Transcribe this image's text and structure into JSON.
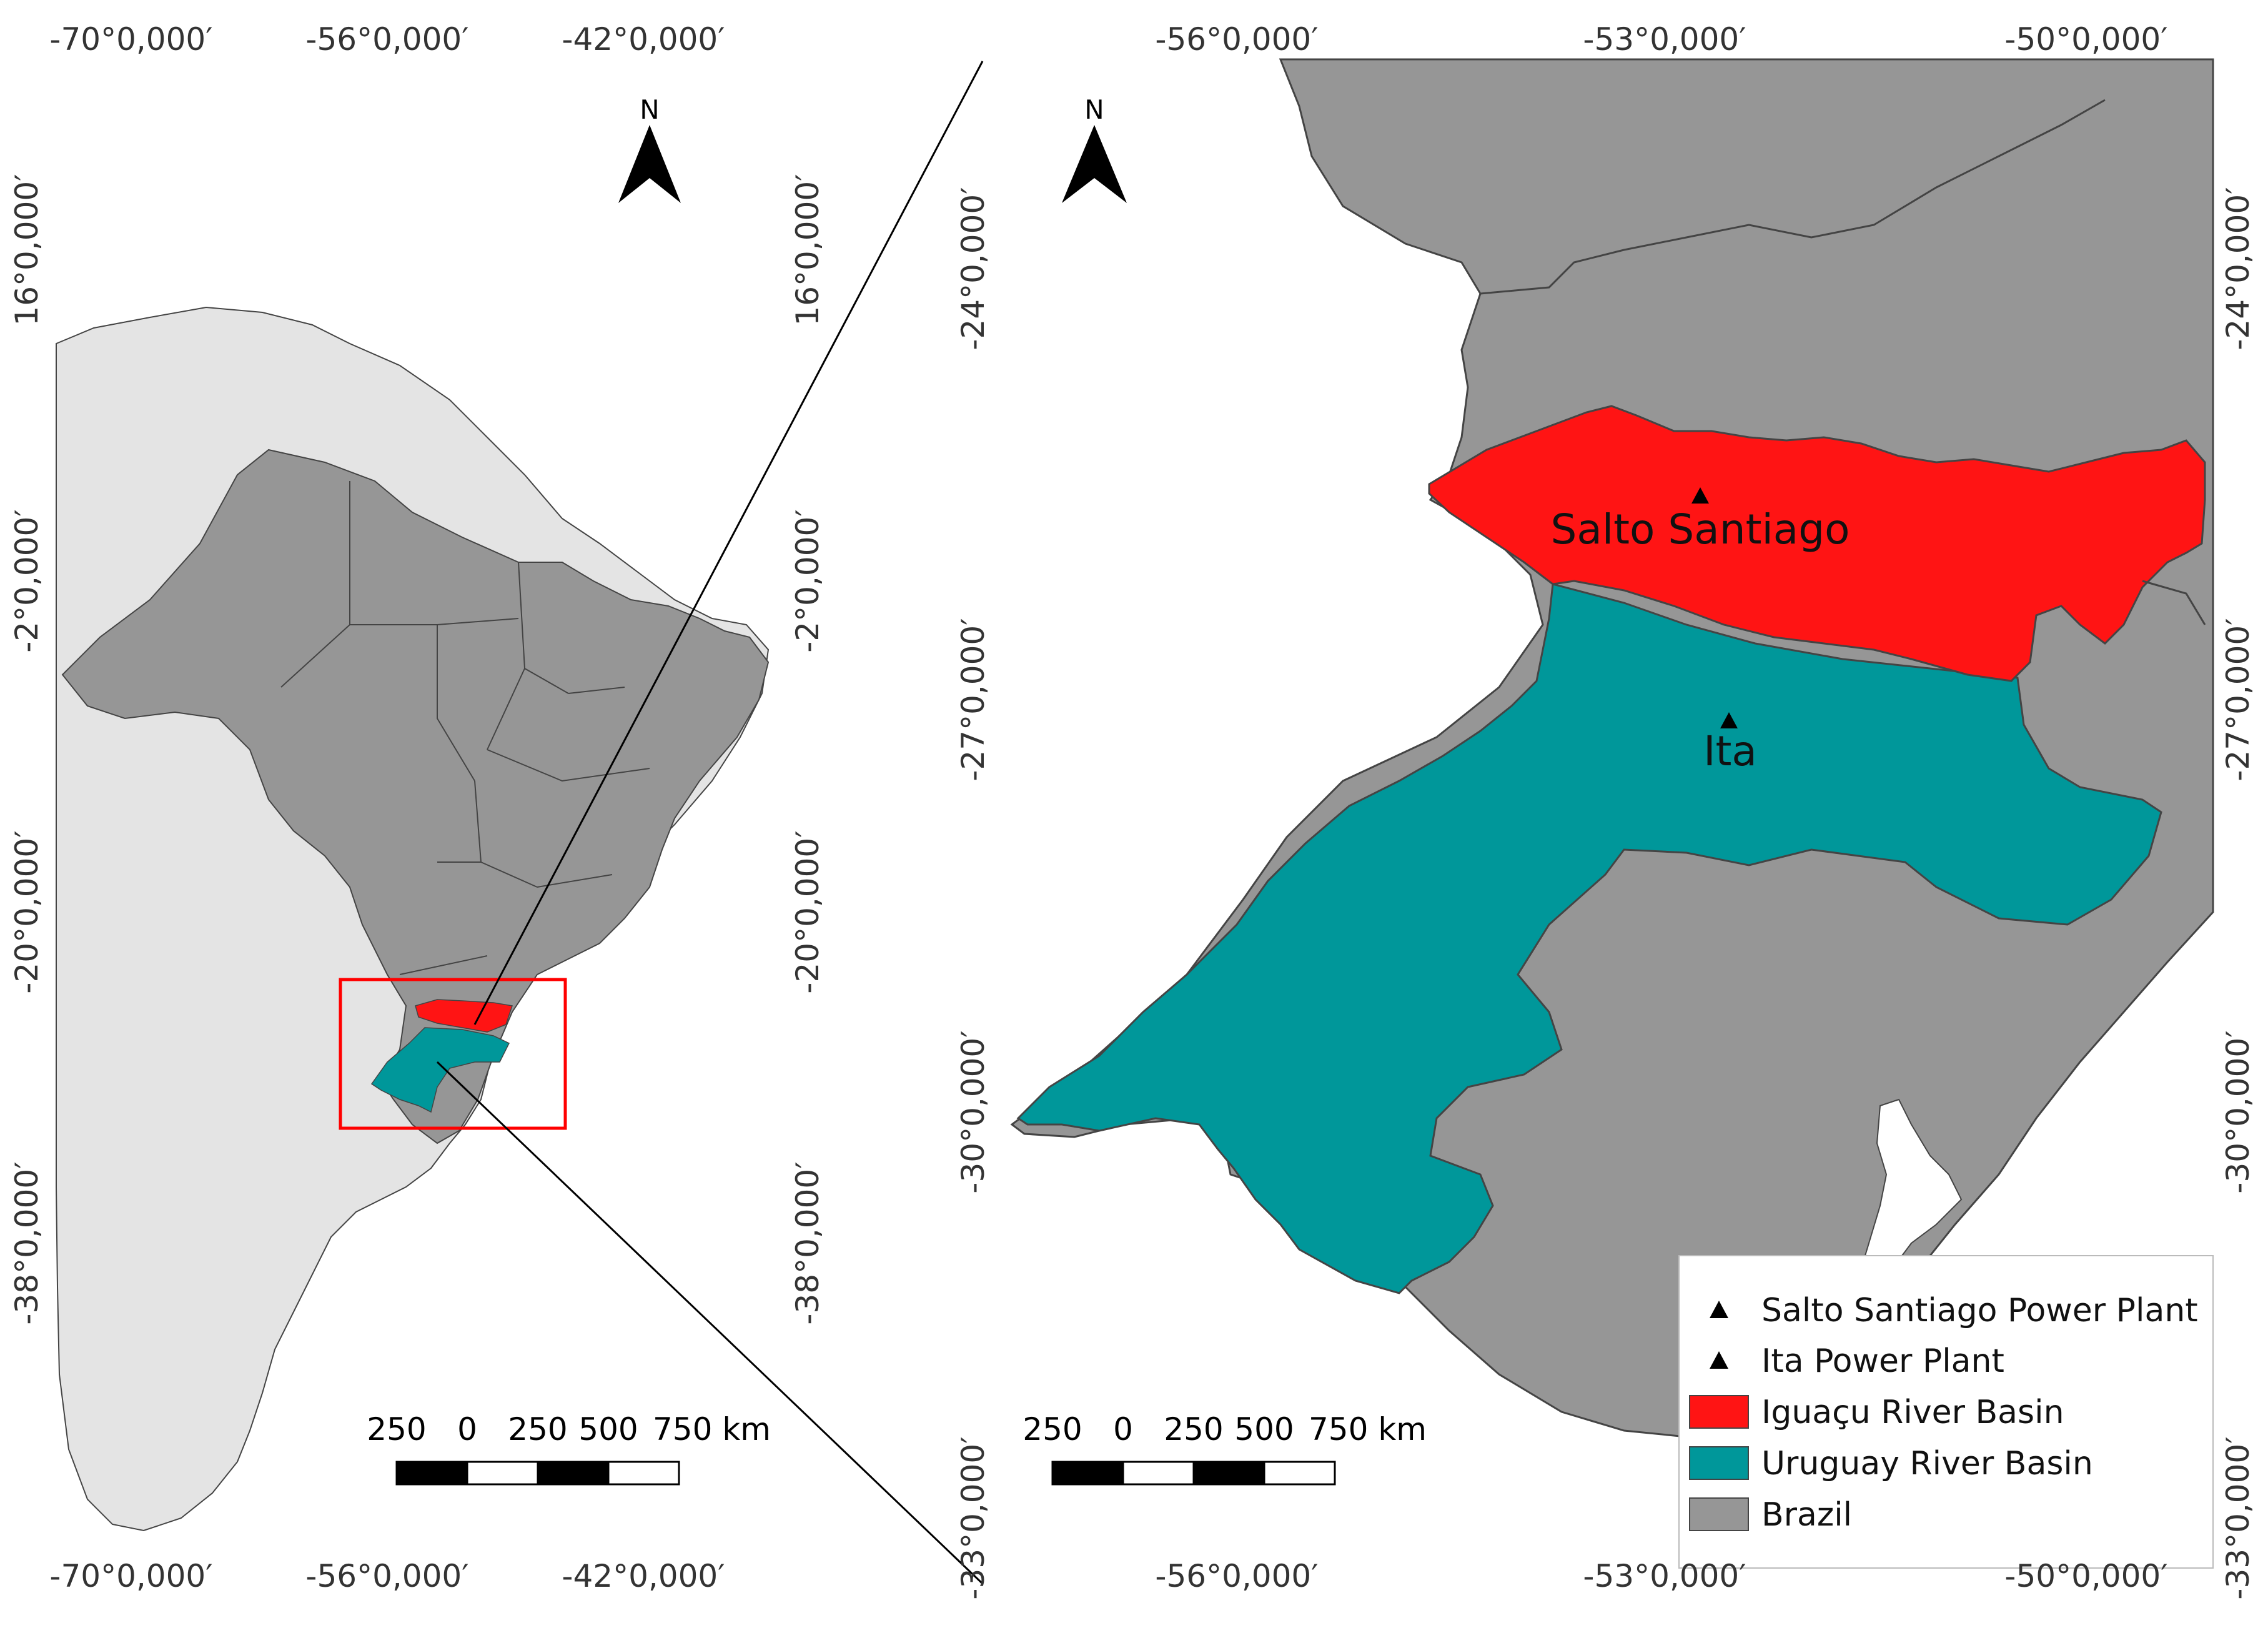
{
  "north_arrow_label": "N",
  "overview_map": {
    "top_ticks": [
      "-70°0,000′",
      "-56°0,000′",
      "-42°0,000′"
    ],
    "bottom_ticks": [
      "-70°0,000′",
      "-56°0,000′",
      "-42°0,000′"
    ],
    "left_ticks": [
      "16°0,000′",
      "-2°0,000′",
      "-20°0,000′",
      "-38°0,000′"
    ],
    "right_ticks": [
      "16°0,000′",
      "-2°0,000′",
      "-20°0,000′",
      "-38°0,000′"
    ],
    "scale_labels": [
      "250",
      "0",
      "250",
      "500",
      "750 km"
    ]
  },
  "detail_map": {
    "top_ticks": [
      "-56°0,000′",
      "-53°0,000′",
      "-50°0,000′"
    ],
    "bottom_ticks": [
      "-56°0,000′",
      "-53°0,000′",
      "-50°0,000′"
    ],
    "left_ticks": [
      "-24°0,000′",
      "-27°0,000′",
      "-30°0,000′",
      "-33°0,000′"
    ],
    "right_ticks": [
      "-24°0,000′",
      "-27°0,000′",
      "-30°0,000′",
      "-33°0,000′"
    ],
    "scale_labels": [
      "250",
      "0",
      "250",
      "500",
      "750 km"
    ],
    "place_labels": {
      "salto": "Salto Santiago",
      "ita": "Ita"
    }
  },
  "legend": {
    "items": [
      {
        "label": "Salto Santiago Power Plant",
        "symbol": "triangle"
      },
      {
        "label": "Ita Power Plant",
        "symbol": "triangle"
      },
      {
        "label": "Iguaçu River Basin",
        "symbol": "fill",
        "color": "#ff1414"
      },
      {
        "label": "Uruguay River Basin",
        "symbol": "fill",
        "color": "#00979a"
      },
      {
        "label": "Brazil",
        "symbol": "fill",
        "color": "#969696"
      }
    ]
  },
  "colors": {
    "iguacu_basin": "#ff1414",
    "uruguay_basin": "#00979a",
    "brazil": "#969696",
    "other_countries": "#e4e4e4",
    "extent_box": "#ff0000"
  }
}
